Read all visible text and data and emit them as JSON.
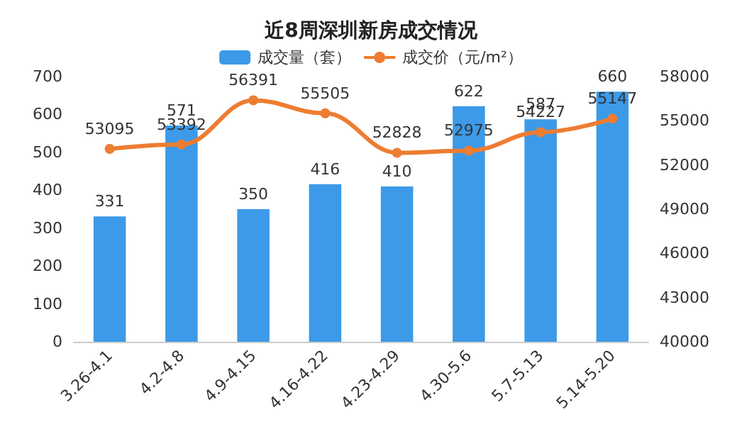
{
  "chart_data": {
    "type": "bar",
    "title": "近8周深圳新房成交情况",
    "categories": [
      "3.26-4.1",
      "4.2-4.8",
      "4.9-4.15",
      "4.16-4.22",
      "4.23-4.29",
      "4.30-5.6",
      "5.7-5.13",
      "5.14-5.20"
    ],
    "series": [
      {
        "name": "成交量（套）",
        "color": "#3c9ae8",
        "values": [
          331,
          571,
          350,
          416,
          410,
          622,
          587,
          660
        ]
      },
      {
        "name": "成交价（元/m²）",
        "type": "line",
        "axis": "y2",
        "color": "#ed7d31",
        "values": [
          53095,
          53392,
          56391,
          55505,
          52828,
          52975,
          54227,
          55147
        ]
      }
    ],
    "ylim": [
      0,
      700
    ],
    "yticks": [
      0,
      100,
      200,
      300,
      400,
      500,
      600,
      700
    ],
    "y2lim": [
      40000,
      58000
    ],
    "y2ticks": [
      40000,
      43000,
      46000,
      49000,
      52000,
      55000,
      58000
    ],
    "data_labels": true,
    "legend": "top",
    "marker": "circle",
    "line_style": "solid"
  }
}
